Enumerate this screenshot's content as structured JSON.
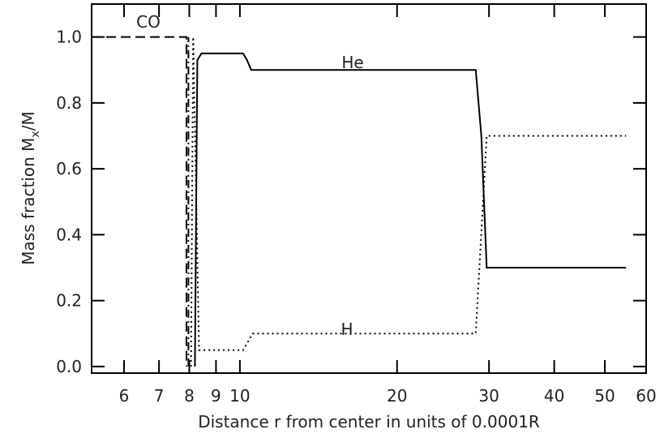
{
  "chart_data": {
    "type": "line",
    "xlabel": "Distance r from center in units of 0.0001R",
    "ylabel": {
      "text": "Mass fraction M",
      "sub": "x",
      "after": "/M"
    },
    "annotations": [
      "CO",
      "He",
      "H"
    ],
    "xscale": "log",
    "xlim": [
      5.2,
      60
    ],
    "ylim": [
      -0.02,
      1.1
    ],
    "xticks": [
      6,
      7,
      8,
      9,
      10,
      20,
      30,
      40,
      50,
      60
    ],
    "yticks": [
      {
        "value": 0,
        "label": "0.0"
      },
      0.2,
      0.4,
      0.6,
      0.8,
      {
        "value": 1,
        "label": "1.0"
      }
    ],
    "series": [
      {
        "color": "#000000",
        "dash": "dashed",
        "x": [
          5.2,
          7.9,
          7.9
        ],
        "values": [
          1.0,
          1.0,
          0
        ]
      },
      {
        "color": "#000000",
        "dash": "dashdot",
        "x": [
          7.97,
          7.97
        ],
        "values": [
          0,
          1.0
        ]
      },
      {
        "color": "#000000",
        "dash": "solid",
        "x": [
          8.2,
          8.29,
          8.44,
          10.14,
          10.32,
          10.51,
          28.3,
          29.0,
          29.7,
          54.9
        ],
        "values": [
          0,
          0.93,
          0.95,
          0.95,
          0.93,
          0.9,
          0.9,
          0.7,
          0.3,
          0.3
        ]
      },
      {
        "color": "#000000",
        "dash": "dotted",
        "x": [
          8.06,
          8.14,
          8.35,
          10.14,
          10.58,
          28.3,
          29.7,
          54.9
        ],
        "values": [
          0,
          1.0,
          0.05,
          0.05,
          0.1,
          0.1,
          0.7,
          0.7
        ]
      }
    ]
  }
}
